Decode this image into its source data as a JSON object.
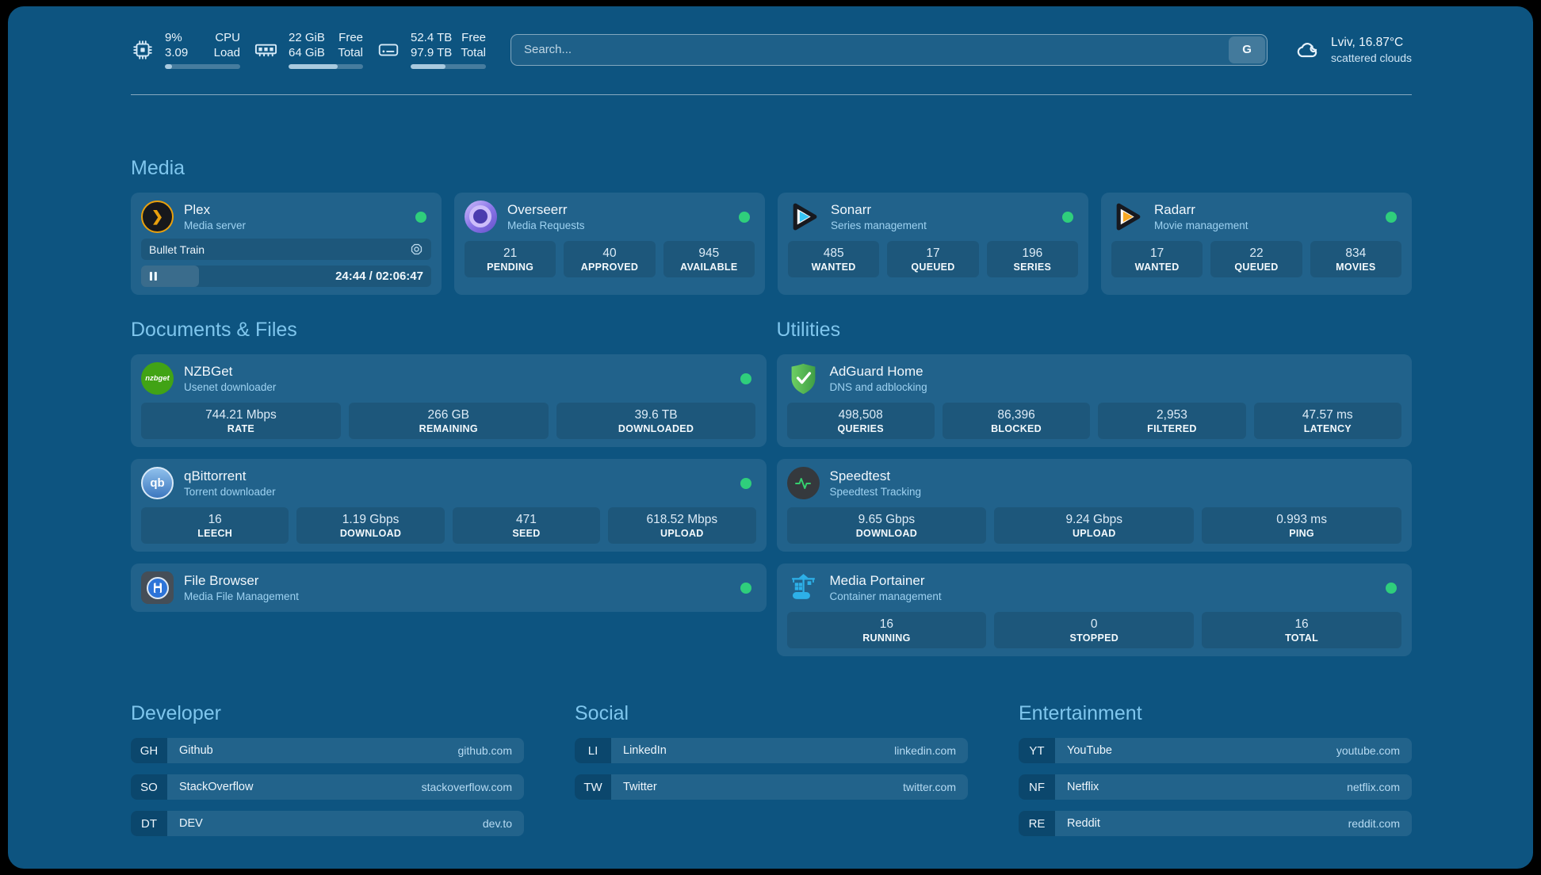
{
  "theme": {
    "window_bg": "#0d5480",
    "accent_heading": "#7fc6ed",
    "status_green": "#2fce7c"
  },
  "topbar": {
    "resources": [
      {
        "icon": "cpu-icon",
        "value1": "9%",
        "value2": "3.09",
        "label1": "CPU",
        "label2": "Load",
        "percent": 9
      },
      {
        "icon": "memory-icon",
        "value1": "22 GiB",
        "value2": "64 GiB",
        "label1": "Free",
        "label2": "Total",
        "percent": 66
      },
      {
        "icon": "disk-icon",
        "value1": "52.4 TB",
        "value2": "97.9 TB",
        "label1": "Free",
        "label2": "Total",
        "percent": 46
      }
    ],
    "search": {
      "placeholder": "Search...",
      "button_label": "G"
    },
    "weather": {
      "summary": "Lviv, 16.87°C",
      "condition": "scattered clouds"
    }
  },
  "media": {
    "section_title": "Media",
    "plex": {
      "title": "Plex",
      "subtitle": "Media server",
      "logo_glyph": "❯",
      "now_playing": "Bullet Train",
      "time_display": "24:44 / 02:06:47",
      "progress_percent": 20
    },
    "overseerr": {
      "title": "Overseerr",
      "subtitle": "Media Requests",
      "stats": [
        {
          "value": "21",
          "label": "PENDING"
        },
        {
          "value": "40",
          "label": "APPROVED"
        },
        {
          "value": "945",
          "label": "AVAILABLE"
        }
      ]
    },
    "sonarr": {
      "title": "Sonarr",
      "subtitle": "Series management",
      "stats": [
        {
          "value": "485",
          "label": "WANTED"
        },
        {
          "value": "17",
          "label": "QUEUED"
        },
        {
          "value": "196",
          "label": "SERIES"
        }
      ]
    },
    "radarr": {
      "title": "Radarr",
      "subtitle": "Movie management",
      "stats": [
        {
          "value": "17",
          "label": "WANTED"
        },
        {
          "value": "22",
          "label": "QUEUED"
        },
        {
          "value": "834",
          "label": "MOVIES"
        }
      ]
    }
  },
  "documents": {
    "section_title": "Documents & Files",
    "nzbget": {
      "title": "NZBGet",
      "subtitle": "Usenet downloader",
      "logo_text": "nzbget",
      "stats": [
        {
          "value": "744.21 Mbps",
          "label": "RATE"
        },
        {
          "value": "266 GB",
          "label": "REMAINING"
        },
        {
          "value": "39.6 TB",
          "label": "DOWNLOADED"
        }
      ]
    },
    "qbittorrent": {
      "title": "qBittorrent",
      "subtitle": "Torrent downloader",
      "logo_text": "qb",
      "stats": [
        {
          "value": "16",
          "label": "LEECH"
        },
        {
          "value": "1.19 Gbps",
          "label": "DOWNLOAD"
        },
        {
          "value": "471",
          "label": "SEED"
        },
        {
          "value": "618.52 Mbps",
          "label": "UPLOAD"
        }
      ]
    },
    "filebrowser": {
      "title": "File Browser",
      "subtitle": "Media File Management"
    }
  },
  "utilities": {
    "section_title": "Utilities",
    "adguard": {
      "title": "AdGuard Home",
      "subtitle": "DNS and adblocking",
      "stats": [
        {
          "value": "498,508",
          "label": "QUERIES"
        },
        {
          "value": "86,396",
          "label": "BLOCKED"
        },
        {
          "value": "2,953",
          "label": "FILTERED"
        },
        {
          "value": "47.57 ms",
          "label": "LATENCY"
        }
      ]
    },
    "speedtest": {
      "title": "Speedtest",
      "subtitle": "Speedtest Tracking",
      "stats": [
        {
          "value": "9.65 Gbps",
          "label": "DOWNLOAD"
        },
        {
          "value": "9.24 Gbps",
          "label": "UPLOAD"
        },
        {
          "value": "0.993 ms",
          "label": "PING"
        }
      ]
    },
    "portainer": {
      "title": "Media Portainer",
      "subtitle": "Container management",
      "stats": [
        {
          "value": "16",
          "label": "RUNNING"
        },
        {
          "value": "0",
          "label": "STOPPED"
        },
        {
          "value": "16",
          "label": "TOTAL"
        }
      ]
    }
  },
  "bookmarks": [
    {
      "section_title": "Developer",
      "links": [
        {
          "abbr": "GH",
          "name": "Github",
          "url": "github.com"
        },
        {
          "abbr": "SO",
          "name": "StackOverflow",
          "url": "stackoverflow.com"
        },
        {
          "abbr": "DT",
          "name": "DEV",
          "url": "dev.to"
        }
      ]
    },
    {
      "section_title": "Social",
      "links": [
        {
          "abbr": "LI",
          "name": "LinkedIn",
          "url": "linkedin.com"
        },
        {
          "abbr": "TW",
          "name": "Twitter",
          "url": "twitter.com"
        }
      ]
    },
    {
      "section_title": "Entertainment",
      "links": [
        {
          "abbr": "YT",
          "name": "YouTube",
          "url": "youtube.com"
        },
        {
          "abbr": "NF",
          "name": "Netflix",
          "url": "netflix.com"
        },
        {
          "abbr": "RE",
          "name": "Reddit",
          "url": "reddit.com"
        }
      ]
    }
  ]
}
